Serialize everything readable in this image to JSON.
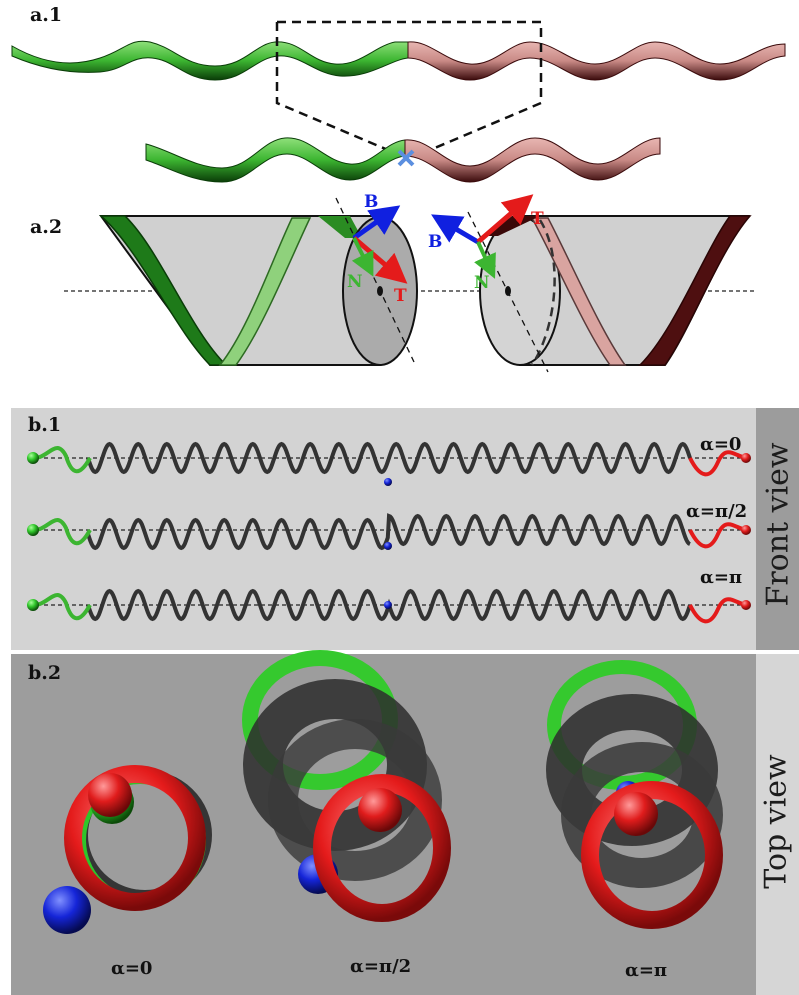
{
  "panels": {
    "a1": "a.1",
    "a2": "a.2",
    "b1": "b.1",
    "b2": "b.2"
  },
  "vectors": {
    "left": {
      "b": "B",
      "n": "N",
      "t": "T"
    },
    "right": {
      "b": "B",
      "n": "N",
      "t": "T"
    }
  },
  "front_view": {
    "side_label": "Front view",
    "rows": [
      {
        "alpha": "α=0"
      },
      {
        "alpha": "α=π/2"
      },
      {
        "alpha": "α=π"
      }
    ]
  },
  "top_view": {
    "side_label": "Top view",
    "captions": [
      "α=0",
      "α=π/2",
      "α=π"
    ]
  },
  "colors": {
    "green": "#3cb531",
    "dark_green": "#0d5e0a",
    "pink": "#c98a86",
    "dark_red": "#4e0f10",
    "red": "#e41b1b",
    "blue": "#1020e0",
    "gray_helix": "#3a3a3a"
  }
}
